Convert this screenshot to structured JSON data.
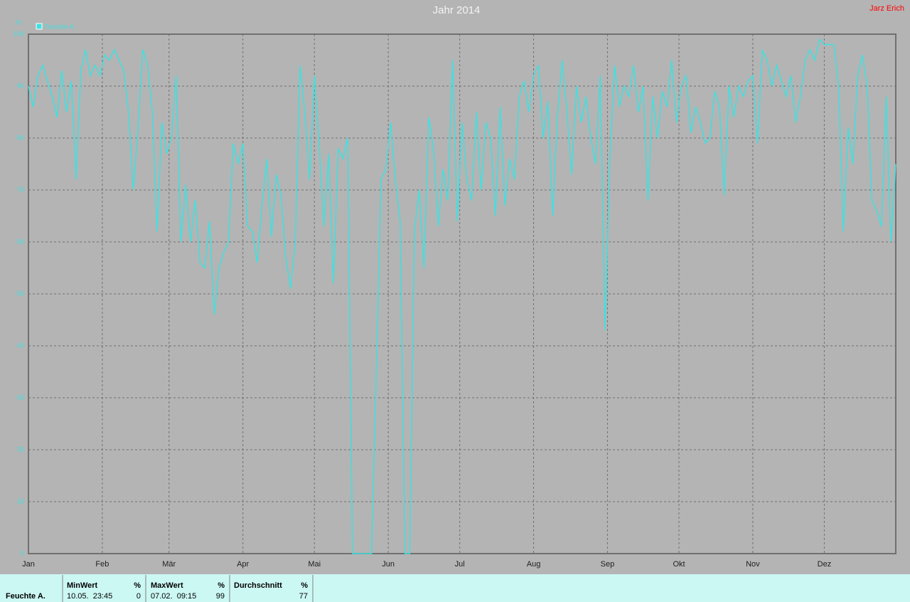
{
  "chart_data": {
    "type": "line",
    "title": "Jahr 2014",
    "author": "Jarz Erich",
    "ylabel": "%",
    "x": [
      1,
      3,
      5,
      7,
      9,
      11,
      13,
      15,
      17,
      19,
      21,
      23,
      25,
      27,
      29,
      31,
      33,
      35,
      37,
      39,
      41,
      43,
      45,
      47,
      49,
      51,
      53,
      55,
      57,
      59,
      61,
      63,
      65,
      67,
      69,
      71,
      73,
      75,
      77,
      79,
      81,
      83,
      85,
      87,
      89,
      91,
      93,
      95,
      97,
      99,
      101,
      103,
      105,
      107,
      109,
      111,
      113,
      115,
      117,
      119,
      121,
      123,
      125,
      127,
      129,
      131,
      133,
      135,
      137,
      139,
      141,
      143,
      145,
      147,
      149,
      151,
      153,
      155,
      157,
      159,
      161,
      163,
      165,
      167,
      169,
      171,
      173,
      175,
      177,
      179,
      181,
      183,
      185,
      187,
      189,
      191,
      193,
      195,
      197,
      199,
      201,
      203,
      205,
      207,
      209,
      211,
      213,
      215,
      217,
      219,
      221,
      223,
      225,
      227,
      229,
      231,
      233,
      235,
      237,
      239,
      241,
      243,
      245,
      247,
      249,
      251,
      253,
      255,
      257,
      259,
      261,
      263,
      265,
      267,
      269,
      271,
      273,
      275,
      277,
      279,
      281,
      283,
      285,
      287,
      289,
      291,
      293,
      295,
      297,
      299,
      301,
      303,
      305,
      307,
      309,
      311,
      313,
      315,
      317,
      319,
      321,
      323,
      325,
      327,
      329,
      331,
      333,
      335,
      337,
      339,
      341,
      343,
      345,
      347,
      349,
      351,
      353,
      355,
      357,
      359,
      361,
      363,
      365
    ],
    "series": [
      {
        "name": "Feuchte A.",
        "color": "#40e0e0",
        "values": [
          90,
          86,
          92,
          94,
          91,
          88,
          84,
          93,
          85,
          91,
          72,
          93,
          97,
          92,
          94,
          92,
          96,
          95,
          97,
          95,
          93,
          85,
          70,
          82,
          97,
          94,
          85,
          62,
          83,
          77,
          80,
          92,
          60,
          71,
          60,
          68,
          56,
          55,
          64,
          46,
          55,
          58,
          60,
          79,
          75,
          79,
          63,
          62,
          56,
          67,
          76,
          61,
          73,
          69,
          57,
          51,
          60,
          94,
          85,
          72,
          92,
          79,
          63,
          77,
          52,
          78,
          76,
          80,
          0,
          0,
          0,
          0,
          0,
          35,
          72,
          74,
          83,
          72,
          64,
          0,
          0,
          62,
          70,
          55,
          84,
          78,
          63,
          74,
          68,
          95,
          64,
          83,
          72,
          68,
          85,
          70,
          83,
          80,
          65,
          86,
          67,
          76,
          72,
          88,
          91,
          85,
          92,
          94,
          80,
          87,
          65,
          84,
          95,
          85,
          73,
          90,
          83,
          88,
          80,
          75,
          92,
          43,
          76,
          94,
          86,
          90,
          88,
          94,
          85,
          90,
          68,
          88,
          80,
          89,
          86,
          95,
          83,
          90,
          92,
          81,
          86,
          83,
          79,
          80,
          89,
          86,
          69,
          90,
          84,
          90,
          88,
          91,
          92,
          79,
          97,
          95,
          90,
          94,
          91,
          88,
          92,
          83,
          88,
          95,
          97,
          95,
          99,
          98,
          98,
          98,
          90,
          62,
          82,
          75,
          92,
          96,
          90,
          68,
          66,
          63,
          88,
          60,
          75
        ]
      }
    ],
    "xlim": [
      1,
      365
    ],
    "xticks": [
      {
        "value": 1,
        "label": "Jan"
      },
      {
        "value": 32,
        "label": "Feb"
      },
      {
        "value": 60,
        "label": "Mär"
      },
      {
        "value": 91,
        "label": "Apr"
      },
      {
        "value": 121,
        "label": "Mai"
      },
      {
        "value": 152,
        "label": "Jun"
      },
      {
        "value": 182,
        "label": "Jul"
      },
      {
        "value": 213,
        "label": "Aug"
      },
      {
        "value": 244,
        "label": "Sep"
      },
      {
        "value": 274,
        "label": "Okt"
      },
      {
        "value": 305,
        "label": "Nov"
      },
      {
        "value": 335,
        "label": "Dez"
      }
    ],
    "ylim": [
      0,
      100
    ],
    "yticks": [
      0,
      10,
      20,
      30,
      40,
      50,
      60,
      70,
      80,
      90,
      100
    ],
    "grid": true
  },
  "summary": {
    "columns": [
      {
        "header": "MinWert",
        "unit": "%",
        "time": "10.05.  23:45",
        "value": 0
      },
      {
        "header": "MaxWert",
        "unit": "%",
        "time": "07.02.  09:15",
        "value": 99
      },
      {
        "header": "Durchschnitt",
        "unit": "%",
        "time": "",
        "value": 77
      }
    ]
  }
}
